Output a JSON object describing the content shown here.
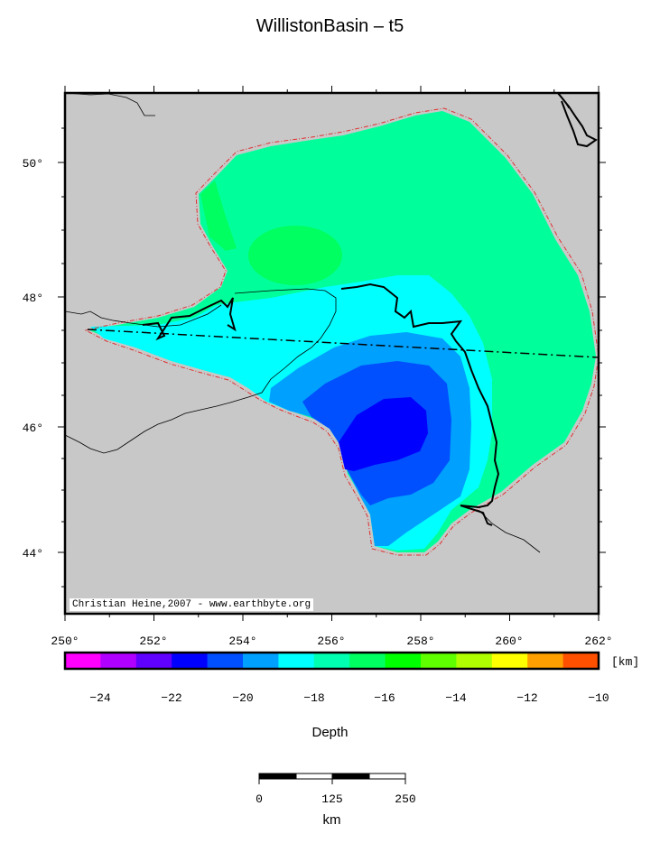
{
  "title": "WillistonBasin – t5",
  "credit": "Christian Heine,2007 - www.earthbyte.org",
  "map": {
    "lon_ticks": [
      "250°",
      "252°",
      "254°",
      "256°",
      "258°",
      "260°",
      "262°"
    ],
    "lat_ticks": [
      "50°",
      "48°",
      "46°",
      "44°"
    ],
    "land_color": "#c8c8c8",
    "boundary_color": "#e03030"
  },
  "colorbar": {
    "title": "Depth",
    "unit": "[km]",
    "ticks": [
      "−24",
      "−22",
      "−20",
      "−18",
      "−16",
      "−14",
      "−12",
      "−10"
    ],
    "colors": [
      "#ff00ff",
      "#b000ff",
      "#6000ff",
      "#0000ff",
      "#0050ff",
      "#00a0ff",
      "#00ffff",
      "#00ffb0",
      "#00ff60",
      "#00ff00",
      "#60ff00",
      "#b0ff00",
      "#ffff00",
      "#ffa000",
      "#ff5000"
    ]
  },
  "scalebar": {
    "ticks": [
      "0",
      "125",
      "250"
    ],
    "unit": "km"
  }
}
